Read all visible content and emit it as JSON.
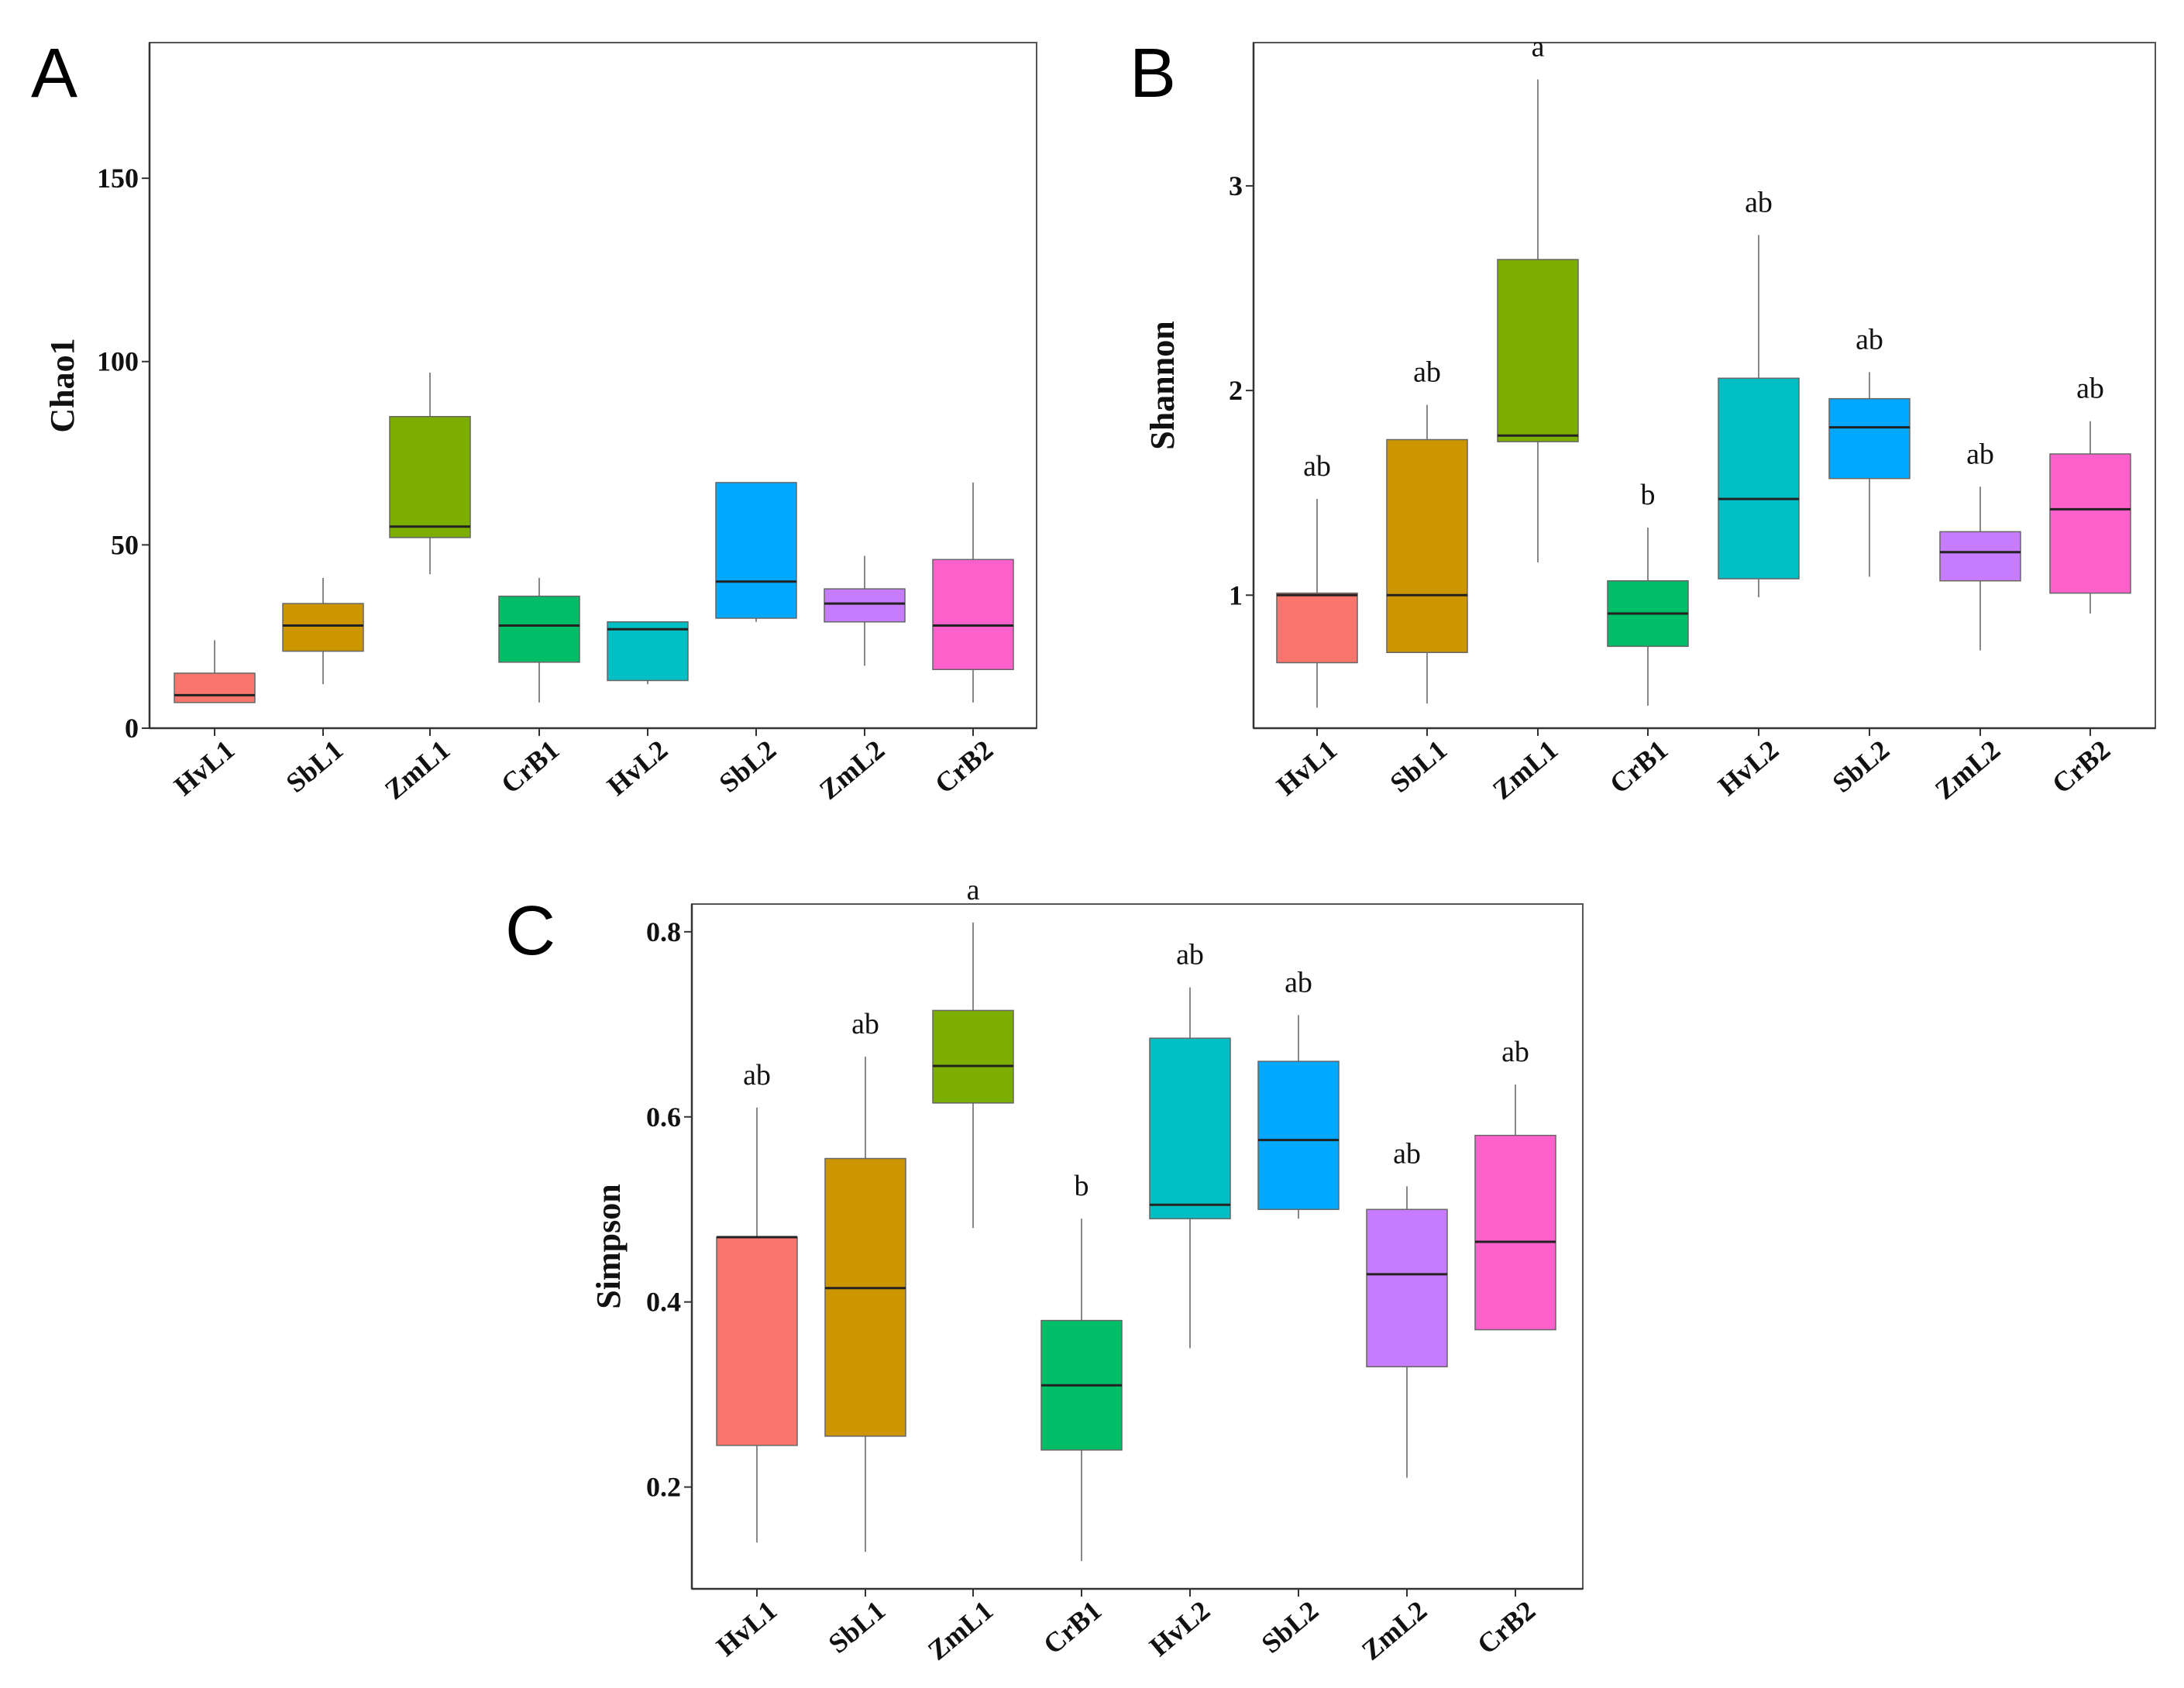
{
  "figure": {
    "domain": "Chart"
  },
  "chart_data": [
    {
      "type": "box",
      "panel": "A",
      "ylabel": "Chao1",
      "xlabel": "",
      "ylim": [
        0,
        187
      ],
      "yticks": [
        0,
        50,
        100,
        150
      ],
      "categories": [
        "HvL1",
        "SbL1",
        "ZmL1",
        "CrB1",
        "HvL2",
        "SbL2",
        "ZmL2",
        "CrB2"
      ],
      "colors": [
        "#F8766D",
        "#CD9600",
        "#7CAE00",
        "#00BE67",
        "#00BFC4",
        "#00A9FF",
        "#C77CFF",
        "#FF61CC"
      ],
      "boxes": [
        {
          "min": 7,
          "q1": 7,
          "median": 9,
          "q3": 15,
          "max": 24
        },
        {
          "min": 12,
          "q1": 21,
          "median": 28,
          "q3": 34,
          "max": 41
        },
        {
          "min": 42,
          "q1": 52,
          "median": 55,
          "q3": 85,
          "max": 97
        },
        {
          "min": 7,
          "q1": 18,
          "median": 28,
          "q3": 36,
          "max": 41
        },
        {
          "min": 12,
          "q1": 13,
          "median": 27,
          "q3": 29,
          "max": 29
        },
        {
          "min": 29,
          "q1": 30,
          "median": 40,
          "q3": 67,
          "max": 67
        },
        {
          "min": 17,
          "q1": 29,
          "median": 34,
          "q3": 38,
          "max": 47
        },
        {
          "min": 7,
          "q1": 16,
          "median": 28,
          "q3": 46,
          "max": 67
        }
      ],
      "sig_labels": []
    },
    {
      "type": "box",
      "panel": "B",
      "ylabel": "Shannon",
      "xlabel": "",
      "ylim": [
        0.35,
        3.7
      ],
      "yticks": [
        1,
        2,
        3
      ],
      "categories": [
        "HvL1",
        "SbL1",
        "ZmL1",
        "CrB1",
        "HvL2",
        "SbL2",
        "ZmL2",
        "CrB2"
      ],
      "colors": [
        "#F8766D",
        "#CD9600",
        "#7CAE00",
        "#00BE67",
        "#00BFC4",
        "#00A9FF",
        "#C77CFF",
        "#FF61CC"
      ],
      "boxes": [
        {
          "min": 0.45,
          "q1": 0.67,
          "median": 1.0,
          "q3": 1.01,
          "max": 1.47
        },
        {
          "min": 0.47,
          "q1": 0.72,
          "median": 1.0,
          "q3": 1.76,
          "max": 1.93
        },
        {
          "min": 1.16,
          "q1": 1.75,
          "median": 1.78,
          "q3": 2.64,
          "max": 3.52
        },
        {
          "min": 0.46,
          "q1": 0.75,
          "median": 0.91,
          "q3": 1.07,
          "max": 1.33
        },
        {
          "min": 0.99,
          "q1": 1.08,
          "median": 1.47,
          "q3": 2.06,
          "max": 2.76
        },
        {
          "min": 1.09,
          "q1": 1.57,
          "median": 1.82,
          "q3": 1.96,
          "max": 2.09
        },
        {
          "min": 0.73,
          "q1": 1.07,
          "median": 1.21,
          "q3": 1.31,
          "max": 1.53
        },
        {
          "min": 0.91,
          "q1": 1.01,
          "median": 1.42,
          "q3": 1.69,
          "max": 1.85
        }
      ],
      "sig_labels": [
        "ab",
        "ab",
        "a",
        "b",
        "ab",
        "ab",
        "ab",
        "ab"
      ]
    },
    {
      "type": "box",
      "panel": "C",
      "ylabel": "Simpson",
      "xlabel": "",
      "ylim": [
        0.09,
        0.83
      ],
      "yticks": [
        0.2,
        0.4,
        0.6,
        0.8
      ],
      "categories": [
        "HvL1",
        "SbL1",
        "ZmL1",
        "CrB1",
        "HvL2",
        "SbL2",
        "ZmL2",
        "CrB2"
      ],
      "colors": [
        "#F8766D",
        "#CD9600",
        "#7CAE00",
        "#00BE67",
        "#00BFC4",
        "#00A9FF",
        "#C77CFF",
        "#FF61CC"
      ],
      "boxes": [
        {
          "min": 0.14,
          "q1": 0.245,
          "median": 0.47,
          "q3": 0.47,
          "max": 0.61
        },
        {
          "min": 0.13,
          "q1": 0.255,
          "median": 0.415,
          "q3": 0.555,
          "max": 0.665
        },
        {
          "min": 0.48,
          "q1": 0.615,
          "median": 0.655,
          "q3": 0.715,
          "max": 0.81
        },
        {
          "min": 0.12,
          "q1": 0.24,
          "median": 0.31,
          "q3": 0.38,
          "max": 0.49
        },
        {
          "min": 0.35,
          "q1": 0.49,
          "median": 0.505,
          "q3": 0.685,
          "max": 0.74
        },
        {
          "min": 0.49,
          "q1": 0.5,
          "median": 0.575,
          "q3": 0.66,
          "max": 0.71
        },
        {
          "min": 0.21,
          "q1": 0.33,
          "median": 0.43,
          "q3": 0.5,
          "max": 0.525
        },
        {
          "min": 0.37,
          "q1": 0.37,
          "median": 0.465,
          "q3": 0.58,
          "max": 0.635
        }
      ],
      "sig_labels": [
        "ab",
        "ab",
        "a",
        "b",
        "ab",
        "ab",
        "ab",
        "ab"
      ]
    }
  ]
}
